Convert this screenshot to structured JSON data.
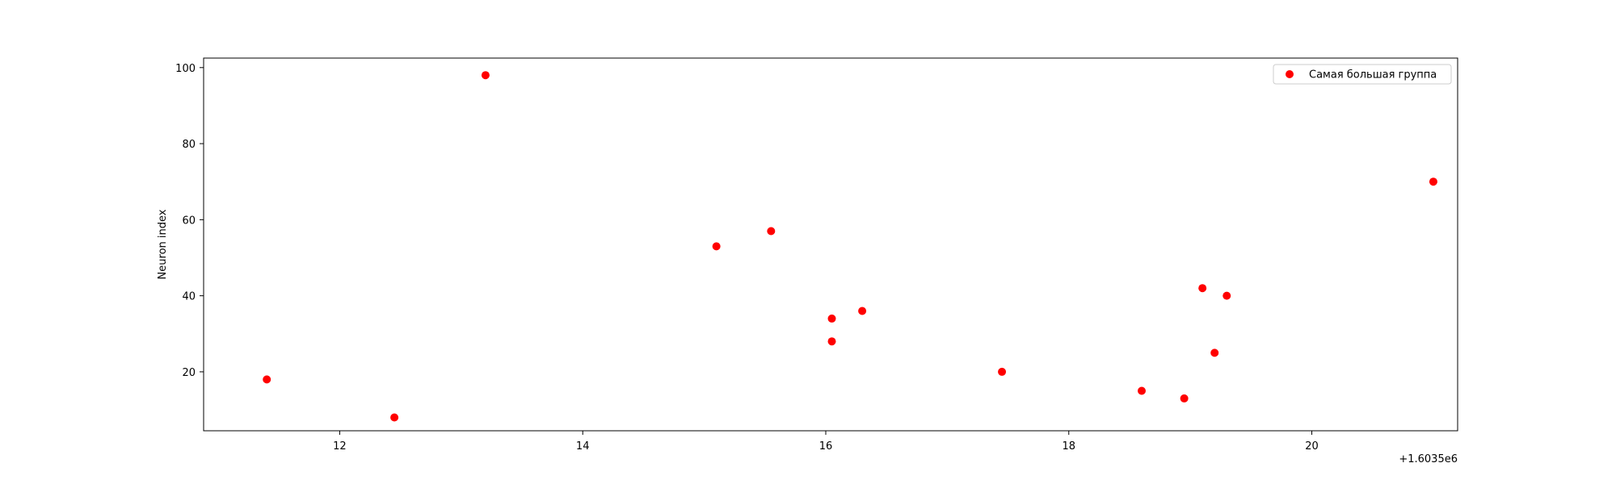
{
  "chart_data": {
    "type": "scatter",
    "title": "",
    "xlabel": "",
    "ylabel": "Neuron index",
    "x_offset_label": "+1.6035e6",
    "xlim": [
      10.88,
      21.2
    ],
    "ylim": [
      4.5,
      102.5
    ],
    "xticks": [
      12,
      14,
      16,
      18,
      20
    ],
    "yticks": [
      20,
      40,
      60,
      80,
      100
    ],
    "grid": false,
    "legend_position": "top-right",
    "series": [
      {
        "name": "Самая большая группа",
        "color": "#ff0000",
        "marker": "circle",
        "points": [
          {
            "x": 11.4,
            "y": 18
          },
          {
            "x": 12.45,
            "y": 8
          },
          {
            "x": 13.2,
            "y": 98
          },
          {
            "x": 15.1,
            "y": 53
          },
          {
            "x": 15.55,
            "y": 57
          },
          {
            "x": 16.05,
            "y": 34
          },
          {
            "x": 16.05,
            "y": 28
          },
          {
            "x": 16.3,
            "y": 36
          },
          {
            "x": 17.45,
            "y": 20
          },
          {
            "x": 18.6,
            "y": 15
          },
          {
            "x": 18.95,
            "y": 13
          },
          {
            "x": 19.1,
            "y": 42
          },
          {
            "x": 19.2,
            "y": 25
          },
          {
            "x": 19.3,
            "y": 40
          },
          {
            "x": 21.0,
            "y": 70
          }
        ]
      }
    ]
  }
}
